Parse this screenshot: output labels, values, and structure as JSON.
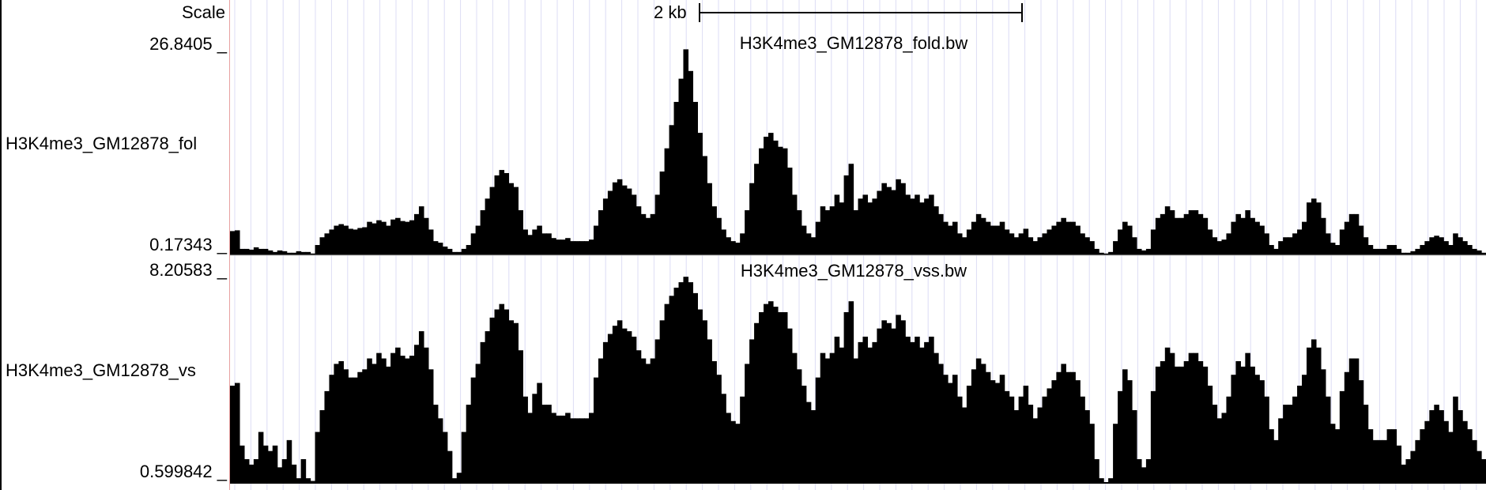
{
  "scale": {
    "label": "Scale",
    "bar_text": "2 kb"
  },
  "tracks": [
    {
      "name": "H3K4me3_GM12878_fol",
      "title": "H3K4me3_GM12878_fold.bw",
      "max_label": "26.8405 _",
      "min_label": "0.17343 _",
      "color": "#000000"
    },
    {
      "name": "H3K4me3_GM12878_vs",
      "title": "H3K4me3_GM12878_vss.bw",
      "max_label": "8.20583 _",
      "min_label": "0.599842 _",
      "color": "#000000"
    }
  ],
  "chart_data": [
    {
      "type": "area",
      "title": "H3K4me3_GM12878_fold.bw",
      "ylim": [
        0.17343,
        26.8405
      ],
      "values": [
        3.3,
        3.4,
        1.0,
        1.0,
        0.9,
        1.2,
        1.0,
        1.0,
        0.8,
        0.6,
        0.8,
        0.7,
        0.5,
        0.5,
        0.7,
        0.6,
        0.6,
        0.4,
        1.5,
        2.5,
        3.0,
        3.5,
        4.0,
        4.2,
        4.0,
        3.6,
        3.5,
        3.7,
        3.8,
        4.5,
        4.3,
        4.7,
        4.5,
        4.0,
        4.8,
        5.0,
        4.6,
        4.5,
        4.7,
        5.5,
        6.5,
        5.0,
        3.5,
        2.0,
        1.8,
        1.3,
        1.0,
        0.6,
        0.6,
        1.0,
        1.5,
        3.0,
        4.0,
        6.0,
        7.5,
        9.0,
        10.5,
        11.2,
        10.8,
        9.5,
        9.0,
        6.0,
        3.5,
        2.8,
        3.5,
        4.0,
        3.0,
        3.0,
        2.4,
        2.2,
        2.2,
        2.4,
        2.0,
        2.0,
        2.0,
        2.0,
        2.2,
        4.0,
        6.0,
        7.5,
        8.5,
        9.6,
        10.0,
        9.2,
        8.8,
        8.0,
        6.5,
        5.5,
        5.0,
        5.5,
        8.0,
        11.0,
        14.0,
        17.0,
        20.0,
        23.0,
        26.8,
        24.0,
        20.0,
        16.0,
        13.0,
        9.5,
        6.5,
        5.0,
        3.5,
        2.5,
        2.0,
        1.8,
        3.0,
        6.0,
        9.5,
        12.0,
        14.0,
        15.5,
        16.0,
        15.0,
        14.2,
        14.0,
        11.5,
        8.0,
        6.0,
        4.0,
        3.0,
        2.5,
        4.5,
        6.5,
        6.0,
        6.5,
        8.0,
        7.0,
        10.5,
        12.0,
        6.0,
        7.5,
        8.0,
        7.0,
        7.5,
        8.5,
        9.5,
        9.0,
        8.6,
        10.0,
        9.5,
        8.0,
        7.5,
        8.0,
        7.0,
        7.5,
        8.0,
        6.5,
        5.5,
        4.5,
        4.0,
        4.5,
        3.0,
        2.5,
        3.5,
        4.5,
        5.5,
        5.0,
        4.5,
        4.0,
        4.0,
        4.5,
        3.5,
        3.0,
        2.5,
        3.0,
        3.6,
        2.5,
        2.0,
        2.5,
        3.0,
        3.5,
        4.0,
        4.5,
        5.0,
        4.5,
        4.5,
        4.0,
        3.0,
        2.5,
        2.0,
        1.0,
        0.5,
        0.4,
        0.6,
        2.0,
        3.5,
        4.5,
        4.0,
        2.5,
        1.0,
        0.8,
        1.0,
        3.5,
        5.0,
        5.5,
        6.5,
        6.0,
        5.0,
        5.0,
        5.5,
        6.0,
        6.0,
        5.5,
        5.0,
        3.5,
        2.5,
        2.0,
        2.2,
        3.0,
        4.5,
        5.5,
        5.0,
        6.0,
        5.0,
        4.5,
        4.0,
        3.0,
        1.5,
        1.0,
        2.0,
        2.5,
        2.5,
        3.0,
        3.5,
        4.5,
        7.0,
        7.5,
        7.0,
        5.0,
        3.0,
        1.8,
        1.5,
        3.5,
        4.5,
        5.5,
        5.5,
        4.0,
        2.5,
        1.5,
        1.0,
        1.0,
        1.0,
        1.5,
        1.5,
        1.0,
        0.5,
        0.5,
        0.7,
        1.0,
        1.5,
        2.0,
        2.5,
        2.7,
        2.5,
        2.0,
        1.5,
        3.0,
        2.5,
        2.0,
        1.5,
        1.0,
        0.8,
        0.5
      ]
    },
    {
      "type": "area",
      "title": "H3K4me3_GM12878_vss.bw",
      "ylim": [
        0.599842,
        8.20583
      ],
      "values": [
        4.2,
        4.3,
        2.0,
        1.5,
        1.3,
        1.5,
        2.5,
        2.0,
        1.8,
        2.0,
        1.2,
        1.5,
        2.2,
        1.3,
        0.8,
        1.5,
        0.8,
        0.7,
        2.5,
        3.3,
        4.0,
        4.6,
        5.0,
        5.1,
        4.8,
        4.5,
        4.5,
        4.7,
        4.8,
        5.2,
        5.0,
        5.4,
        5.2,
        4.9,
        5.4,
        5.6,
        5.3,
        5.2,
        5.3,
        5.7,
        6.2,
        5.6,
        4.8,
        3.5,
        3.0,
        2.5,
        1.8,
        0.8,
        1.0,
        2.5,
        3.5,
        4.5,
        5.0,
        5.8,
        6.2,
        6.7,
        7.0,
        7.2,
        7.0,
        6.6,
        6.5,
        5.5,
        3.8,
        3.2,
        3.9,
        4.3,
        3.5,
        3.5,
        3.2,
        3.1,
        3.1,
        3.2,
        3.0,
        3.0,
        3.0,
        3.0,
        3.2,
        4.5,
        5.2,
        5.8,
        6.1,
        6.4,
        6.6,
        6.3,
        6.2,
        6.0,
        5.5,
        5.2,
        5.0,
        5.2,
        5.9,
        6.6,
        7.2,
        7.5,
        7.8,
        8.0,
        8.2,
        8.0,
        7.6,
        7.0,
        6.6,
        5.9,
        5.1,
        4.6,
        3.9,
        3.2,
        2.9,
        2.8,
        3.8,
        5.0,
        5.9,
        6.5,
        6.9,
        7.2,
        7.3,
        7.1,
        6.9,
        6.9,
        6.3,
        5.4,
        4.8,
        4.2,
        3.6,
        3.3,
        4.5,
        5.4,
        5.2,
        5.4,
        6.0,
        5.6,
        6.9,
        7.3,
        5.2,
        5.8,
        6.0,
        5.6,
        5.8,
        6.3,
        6.6,
        6.5,
        6.3,
        6.8,
        6.6,
        6.0,
        5.8,
        6.0,
        5.6,
        5.8,
        6.0,
        5.4,
        5.0,
        4.6,
        4.3,
        4.6,
        3.8,
        3.4,
        4.2,
        4.8,
        5.2,
        5.0,
        4.7,
        4.4,
        4.3,
        4.6,
        4.0,
        3.8,
        3.3,
        3.8,
        4.2,
        3.5,
        3.0,
        3.4,
        3.8,
        4.1,
        4.4,
        4.7,
        5.0,
        4.7,
        4.7,
        4.4,
        3.8,
        3.3,
        2.8,
        1.5,
        0.8,
        0.6,
        0.8,
        2.8,
        4.0,
        4.8,
        4.4,
        3.3,
        1.5,
        1.2,
        1.5,
        4.0,
        4.9,
        5.1,
        5.6,
        5.4,
        4.9,
        4.9,
        5.1,
        5.4,
        5.4,
        5.1,
        4.9,
        4.2,
        3.5,
        3.0,
        3.2,
        3.8,
        4.6,
        5.1,
        4.9,
        5.4,
        4.9,
        4.6,
        4.4,
        3.8,
        2.6,
        2.2,
        3.0,
        3.5,
        3.5,
        3.8,
        4.2,
        4.6,
        5.6,
        5.9,
        5.6,
        4.8,
        3.8,
        2.8,
        2.6,
        4.0,
        4.7,
        5.2,
        5.2,
        4.4,
        3.5,
        2.6,
        2.2,
        2.2,
        2.2,
        2.6,
        2.6,
        2.0,
        1.3,
        1.5,
        1.8,
        2.2,
        2.6,
        2.9,
        3.3,
        3.5,
        3.3,
        2.9,
        2.5,
        3.8,
        3.3,
        2.9,
        2.6,
        2.2,
        1.8,
        1.5
      ]
    }
  ]
}
